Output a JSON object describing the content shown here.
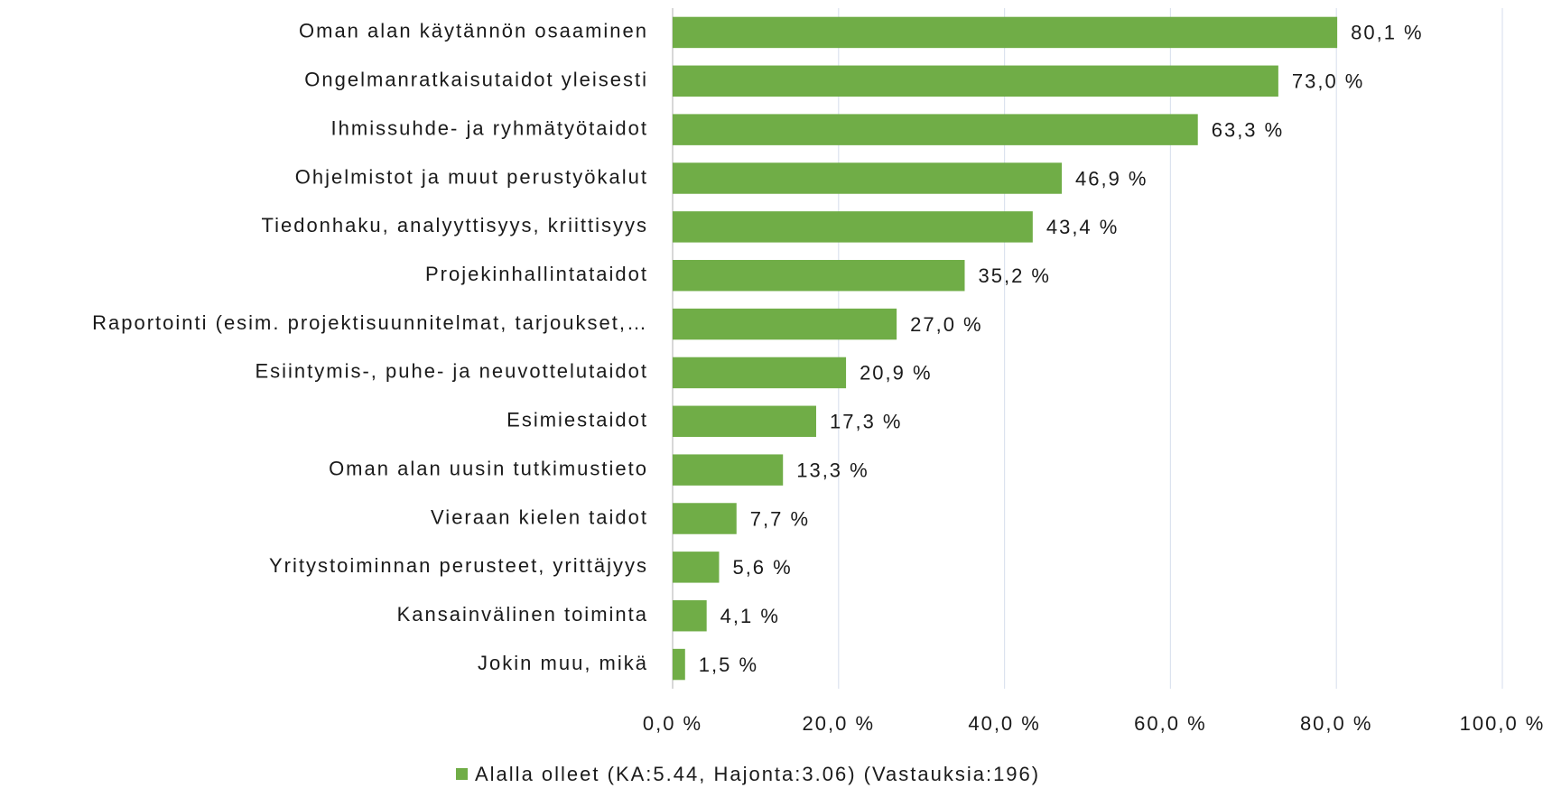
{
  "chart_data": {
    "type": "barh",
    "categories": [
      "Oman alan käytännön osaaminen",
      "Ongelmanratkaisutaidot yleisesti",
      "Ihmissuhde- ja ryhmätyötaidot",
      "Ohjelmistot ja muut perustyökalut",
      "Tiedonhaku, analyyttisyys, kriittisyys",
      "Projekinhallintataidot",
      "Raportointi (esim. projektisuunnitelmat, tarjoukset,…",
      "Esiintymis-, puhe- ja neuvottelutaidot",
      "Esimiestaidot",
      "Oman alan uusin tutkimustieto",
      "Vieraan kielen taidot",
      "Yritystoiminnan perusteet, yrittäjyys",
      "Kansainvälinen toiminta",
      "Jokin muu, mikä"
    ],
    "series": [
      {
        "name": "Alalla olleet (KA:5.44, Hajonta:3.06) (Vastauksia:196)",
        "color": "#70ad47",
        "values": [
          80.1,
          73.0,
          63.3,
          46.9,
          43.4,
          35.2,
          27.0,
          20.9,
          17.3,
          13.3,
          7.7,
          5.6,
          4.1,
          1.5
        ],
        "value_labels": [
          "80,1 %",
          "73,0 %",
          "63,3 %",
          "46,9 %",
          "43,4 %",
          "35,2 %",
          "27,0 %",
          "20,9 %",
          "17,3 %",
          "13,3 %",
          "7,7 %",
          "5,6 %",
          "4,1 %",
          "1,5 %"
        ]
      }
    ],
    "xlim": [
      0,
      100
    ],
    "xticks": [
      {
        "value": 0,
        "label": "0,0 %"
      },
      {
        "value": 20,
        "label": "20,0 %"
      },
      {
        "value": 40,
        "label": "40,0 %"
      },
      {
        "value": 60,
        "label": "60,0 %"
      },
      {
        "value": 80,
        "label": "80,0 %"
      },
      {
        "value": 100,
        "label": "100,0 %"
      }
    ],
    "grid": true,
    "legend": "bottom"
  }
}
